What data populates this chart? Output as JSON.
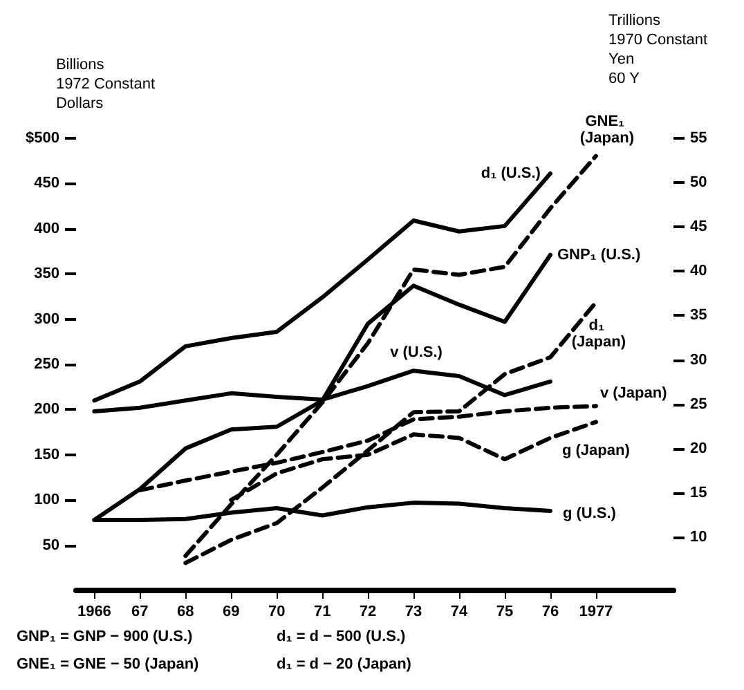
{
  "chart_data": {
    "type": "line",
    "ylabel": "Billions 1972 Constant Dollars",
    "y2label": "Trillions 1970 Constant Yen 60 Y",
    "x": [
      1966,
      1967,
      1968,
      1969,
      1970,
      1971,
      1972,
      1973,
      1974,
      1975,
      1976,
      1977
    ],
    "xlim": [
      1965.6,
      1978.7
    ],
    "xticks": [
      1966,
      {
        "value": 1967,
        "label": "67"
      },
      {
        "value": 1968,
        "label": "68"
      },
      {
        "value": 1969,
        "label": "69"
      },
      {
        "value": 1970,
        "label": "70"
      },
      {
        "value": 1971,
        "label": "71"
      },
      {
        "value": 1972,
        "label": "72"
      },
      {
        "value": 1973,
        "label": "73"
      },
      {
        "value": 1974,
        "label": "74"
      },
      {
        "value": 1975,
        "label": "75"
      },
      {
        "value": 1976,
        "label": "76"
      },
      1977
    ],
    "ylim": [
      0,
      500
    ],
    "yticks": [
      50,
      100,
      150,
      200,
      250,
      300,
      350,
      400,
      450,
      {
        "value": 500,
        "label": "$500"
      }
    ],
    "y2lim": [
      4,
      55
    ],
    "y2ticks": [
      10,
      15,
      20,
      25,
      30,
      35,
      40,
      45,
      50,
      55
    ],
    "grid": false,
    "marker": "none",
    "series": [
      {
        "name": "d₁ (U.S.)",
        "color": "#000000",
        "line_style": "solid",
        "values": [
          210,
          231,
          270,
          279,
          286,
          324,
          366,
          409,
          397,
          403,
          461,
          null
        ]
      },
      {
        "name": "GNP₁ (U.S.)",
        "color": "#000000",
        "line_style": "solid",
        "values": [
          78,
          112,
          157,
          178,
          181,
          210,
          295,
          337,
          316,
          297,
          371,
          null
        ]
      },
      {
        "name": "v (U.S.)",
        "color": "#000000",
        "line_style": "solid",
        "values": [
          198,
          202,
          210,
          218,
          214,
          211,
          226,
          243,
          237,
          216,
          231,
          null
        ]
      },
      {
        "name": "g (U.S.)",
        "color": "#000000",
        "line_style": "solid",
        "values": [
          78,
          78,
          79,
          86,
          91,
          83,
          92,
          97,
          96,
          91,
          88,
          null
        ]
      },
      {
        "name": "GNE₁ (Japan)",
        "color": "#000000",
        "line_style": "dashed",
        "axis": "y2",
        "values": [
          null,
          null,
          7.9,
          13.7,
          19.3,
          25.2,
          31.9,
          40.2,
          39.6,
          40.5,
          47.1,
          53.0
        ]
      },
      {
        "name": "d₁ (Japan)",
        "color": "#000000",
        "line_style": "dashed",
        "axis": "y2",
        "values": [
          null,
          null,
          7.1,
          9.7,
          11.6,
          15.6,
          19.8,
          24.1,
          24.2,
          28.4,
          30.3,
          36.5
        ]
      },
      {
        "name": "v (Japan)",
        "color": "#000000",
        "line_style": "dashed",
        "axis": "y2",
        "values": [
          null,
          15.3,
          16.4,
          17.4,
          18.4,
          19.6,
          20.9,
          23.3,
          23.6,
          24.2,
          24.6,
          24.8
        ]
      },
      {
        "name": "g (Japan)",
        "color": "#000000",
        "line_style": "dashed",
        "axis": "y2",
        "values": [
          null,
          null,
          null,
          14.2,
          17.2,
          18.8,
          19.3,
          21.6,
          21.2,
          18.8,
          21.2,
          23.0
        ]
      }
    ],
    "annotations": [
      "GNP₁ = GNP − 900 (U.S.)",
      "d₁ = d − 500 (U.S.)",
      "GNE₁ = GNE − 50 (Japan)",
      "d₁ = d − 20 (Japan)"
    ]
  }
}
